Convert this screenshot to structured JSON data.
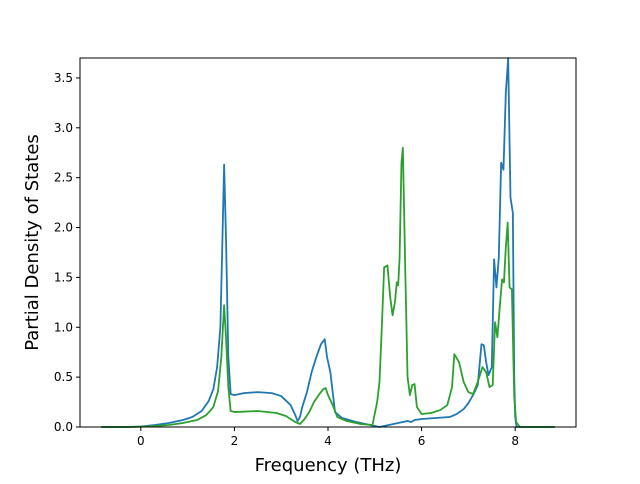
{
  "chart_data": {
    "type": "line",
    "title": "",
    "xlabel": "Frequency (THz)",
    "ylabel": "Partial Density of States",
    "xlim": [
      -1.3,
      9.3
    ],
    "ylim": [
      0,
      3.7
    ],
    "xticks": [
      0,
      2,
      4,
      6,
      8
    ],
    "yticks": [
      0.0,
      0.5,
      1.0,
      1.5,
      2.0,
      2.5,
      3.0,
      3.5
    ],
    "grid": false,
    "legend": "none",
    "series": [
      {
        "color": "#1f77b4",
        "points": [
          [
            -0.85,
            0.0
          ],
          [
            -0.3,
            0.0
          ],
          [
            0.0,
            0.005
          ],
          [
            0.3,
            0.02
          ],
          [
            0.6,
            0.04
          ],
          [
            0.9,
            0.07
          ],
          [
            1.1,
            0.1
          ],
          [
            1.3,
            0.16
          ],
          [
            1.45,
            0.26
          ],
          [
            1.55,
            0.38
          ],
          [
            1.63,
            0.6
          ],
          [
            1.7,
            1.0
          ],
          [
            1.74,
            1.8
          ],
          [
            1.78,
            2.63
          ],
          [
            1.82,
            1.9
          ],
          [
            1.87,
            0.7
          ],
          [
            1.92,
            0.33
          ],
          [
            2.0,
            0.32
          ],
          [
            2.2,
            0.34
          ],
          [
            2.5,
            0.35
          ],
          [
            2.8,
            0.34
          ],
          [
            3.0,
            0.31
          ],
          [
            3.2,
            0.22
          ],
          [
            3.3,
            0.12
          ],
          [
            3.35,
            0.06
          ],
          [
            3.4,
            0.1
          ],
          [
            3.45,
            0.2
          ],
          [
            3.55,
            0.35
          ],
          [
            3.65,
            0.55
          ],
          [
            3.75,
            0.7
          ],
          [
            3.85,
            0.83
          ],
          [
            3.93,
            0.88
          ],
          [
            3.98,
            0.7
          ],
          [
            4.05,
            0.55
          ],
          [
            4.1,
            0.35
          ],
          [
            4.15,
            0.15
          ],
          [
            4.3,
            0.09
          ],
          [
            4.6,
            0.05
          ],
          [
            4.9,
            0.02
          ],
          [
            5.1,
            0.0
          ],
          [
            5.3,
            0.02
          ],
          [
            5.5,
            0.04
          ],
          [
            5.7,
            0.06
          ],
          [
            5.78,
            0.05
          ],
          [
            5.85,
            0.07
          ],
          [
            6.0,
            0.08
          ],
          [
            6.3,
            0.09
          ],
          [
            6.6,
            0.1
          ],
          [
            6.75,
            0.13
          ],
          [
            6.9,
            0.18
          ],
          [
            7.0,
            0.24
          ],
          [
            7.1,
            0.32
          ],
          [
            7.2,
            0.42
          ],
          [
            7.28,
            0.83
          ],
          [
            7.33,
            0.82
          ],
          [
            7.38,
            0.65
          ],
          [
            7.43,
            0.52
          ],
          [
            7.5,
            0.6
          ],
          [
            7.55,
            1.68
          ],
          [
            7.6,
            1.4
          ],
          [
            7.65,
            1.7
          ],
          [
            7.7,
            2.65
          ],
          [
            7.75,
            2.58
          ],
          [
            7.8,
            3.35
          ],
          [
            7.85,
            3.7
          ],
          [
            7.9,
            2.3
          ],
          [
            7.95,
            2.15
          ],
          [
            7.98,
            0.5
          ],
          [
            8.0,
            0.1
          ],
          [
            8.03,
            0.0
          ],
          [
            8.5,
            0.0
          ],
          [
            8.85,
            0.0
          ]
        ]
      },
      {
        "color": "#2ca02c",
        "points": [
          [
            -0.85,
            0.0
          ],
          [
            -0.3,
            0.0
          ],
          [
            0.0,
            0.003
          ],
          [
            0.3,
            0.01
          ],
          [
            0.6,
            0.02
          ],
          [
            0.9,
            0.04
          ],
          [
            1.2,
            0.07
          ],
          [
            1.4,
            0.12
          ],
          [
            1.55,
            0.2
          ],
          [
            1.65,
            0.36
          ],
          [
            1.72,
            0.7
          ],
          [
            1.78,
            1.22
          ],
          [
            1.82,
            0.9
          ],
          [
            1.87,
            0.4
          ],
          [
            1.92,
            0.16
          ],
          [
            2.0,
            0.15
          ],
          [
            2.5,
            0.16
          ],
          [
            2.9,
            0.14
          ],
          [
            3.1,
            0.11
          ],
          [
            3.3,
            0.05
          ],
          [
            3.4,
            0.03
          ],
          [
            3.5,
            0.08
          ],
          [
            3.6,
            0.15
          ],
          [
            3.7,
            0.25
          ],
          [
            3.8,
            0.32
          ],
          [
            3.9,
            0.38
          ],
          [
            3.95,
            0.39
          ],
          [
            4.0,
            0.32
          ],
          [
            4.1,
            0.22
          ],
          [
            4.2,
            0.1
          ],
          [
            4.4,
            0.06
          ],
          [
            4.7,
            0.03
          ],
          [
            4.95,
            0.02
          ],
          [
            5.05,
            0.25
          ],
          [
            5.1,
            0.45
          ],
          [
            5.15,
            1.0
          ],
          [
            5.2,
            1.6
          ],
          [
            5.27,
            1.62
          ],
          [
            5.33,
            1.3
          ],
          [
            5.38,
            1.12
          ],
          [
            5.43,
            1.25
          ],
          [
            5.47,
            1.45
          ],
          [
            5.5,
            1.42
          ],
          [
            5.53,
            1.7
          ],
          [
            5.57,
            2.65
          ],
          [
            5.6,
            2.8
          ],
          [
            5.65,
            1.6
          ],
          [
            5.7,
            0.5
          ],
          [
            5.75,
            0.32
          ],
          [
            5.8,
            0.42
          ],
          [
            5.85,
            0.43
          ],
          [
            5.9,
            0.2
          ],
          [
            6.0,
            0.13
          ],
          [
            6.2,
            0.14
          ],
          [
            6.4,
            0.17
          ],
          [
            6.55,
            0.22
          ],
          [
            6.65,
            0.4
          ],
          [
            6.7,
            0.73
          ],
          [
            6.8,
            0.65
          ],
          [
            6.9,
            0.45
          ],
          [
            7.0,
            0.35
          ],
          [
            7.1,
            0.33
          ],
          [
            7.2,
            0.45
          ],
          [
            7.3,
            0.6
          ],
          [
            7.38,
            0.55
          ],
          [
            7.45,
            0.4
          ],
          [
            7.52,
            0.42
          ],
          [
            7.57,
            1.05
          ],
          [
            7.62,
            0.9
          ],
          [
            7.67,
            1.2
          ],
          [
            7.72,
            1.48
          ],
          [
            7.76,
            1.45
          ],
          [
            7.8,
            1.8
          ],
          [
            7.84,
            2.05
          ],
          [
            7.88,
            1.4
          ],
          [
            7.93,
            1.38
          ],
          [
            7.98,
            0.3
          ],
          [
            8.02,
            0.05
          ],
          [
            8.1,
            0.0
          ],
          [
            8.85,
            0.0
          ]
        ]
      }
    ]
  }
}
